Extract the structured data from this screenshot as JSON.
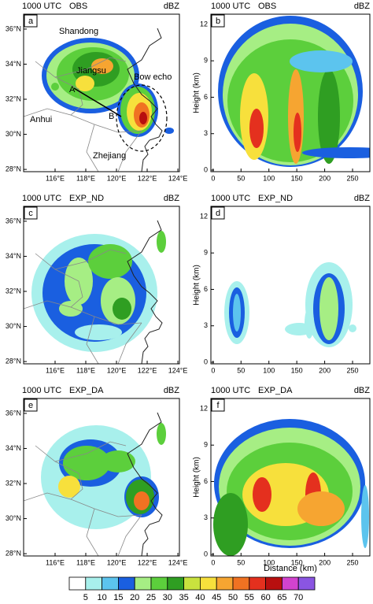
{
  "rows": [
    {
      "time": "1000 UTC",
      "experiment": "OBS",
      "unit": "dBZ",
      "map_letter": "a",
      "section_letter": "b"
    },
    {
      "time": "1000 UTC",
      "experiment": "EXP_ND",
      "unit": "dBZ",
      "map_letter": "c",
      "section_letter": "d"
    },
    {
      "time": "1000 UTC",
      "experiment": "EXP_DA",
      "unit": "dBZ",
      "map_letter": "e",
      "section_letter": "f"
    }
  ],
  "map": {
    "xlim": [
      113.95,
      124.1
    ],
    "ylim": [
      27.87,
      36.85
    ],
    "xticks": [
      {
        "value": 116,
        "label": "116°E"
      },
      {
        "value": 118,
        "label": "118°E"
      },
      {
        "value": 120,
        "label": "120°E"
      },
      {
        "value": 122,
        "label": "122°E"
      },
      {
        "value": 124,
        "label": "124°E"
      }
    ],
    "yticks": [
      {
        "value": 28,
        "label": "28°N"
      },
      {
        "value": 30,
        "label": "30°N"
      },
      {
        "value": 32,
        "label": "32°N"
      },
      {
        "value": 34,
        "label": "34°N"
      },
      {
        "value": 36,
        "label": "36°N"
      }
    ],
    "place_labels": [
      "Shandong",
      "Jiangsu",
      "Bow echo",
      "Anhui",
      "Zhejiang",
      "A",
      "B"
    ]
  },
  "section": {
    "xlim": [
      -4,
      281
    ],
    "ylim": [
      -0.13,
      12.84
    ],
    "xticks": [
      0,
      50,
      100,
      150,
      200,
      250
    ],
    "yticks": [
      0,
      3,
      6,
      9,
      12
    ],
    "ylabel": "Height (km)",
    "xlabel": "Distance (km)"
  },
  "colorbar": {
    "levels": [
      5,
      10,
      15,
      20,
      25,
      30,
      35,
      40,
      45,
      50,
      55,
      60,
      65,
      70
    ],
    "colors": [
      "#ffffff",
      "#a8f0ec",
      "#5cc4ee",
      "#1a5fe0",
      "#a6ee84",
      "#5ccf3c",
      "#2f9e22",
      "#c9e23e",
      "#f7e03c",
      "#f6a531",
      "#f07222",
      "#e4301e",
      "#b80f0f",
      "#d243cf",
      "#8a55e2"
    ]
  }
}
